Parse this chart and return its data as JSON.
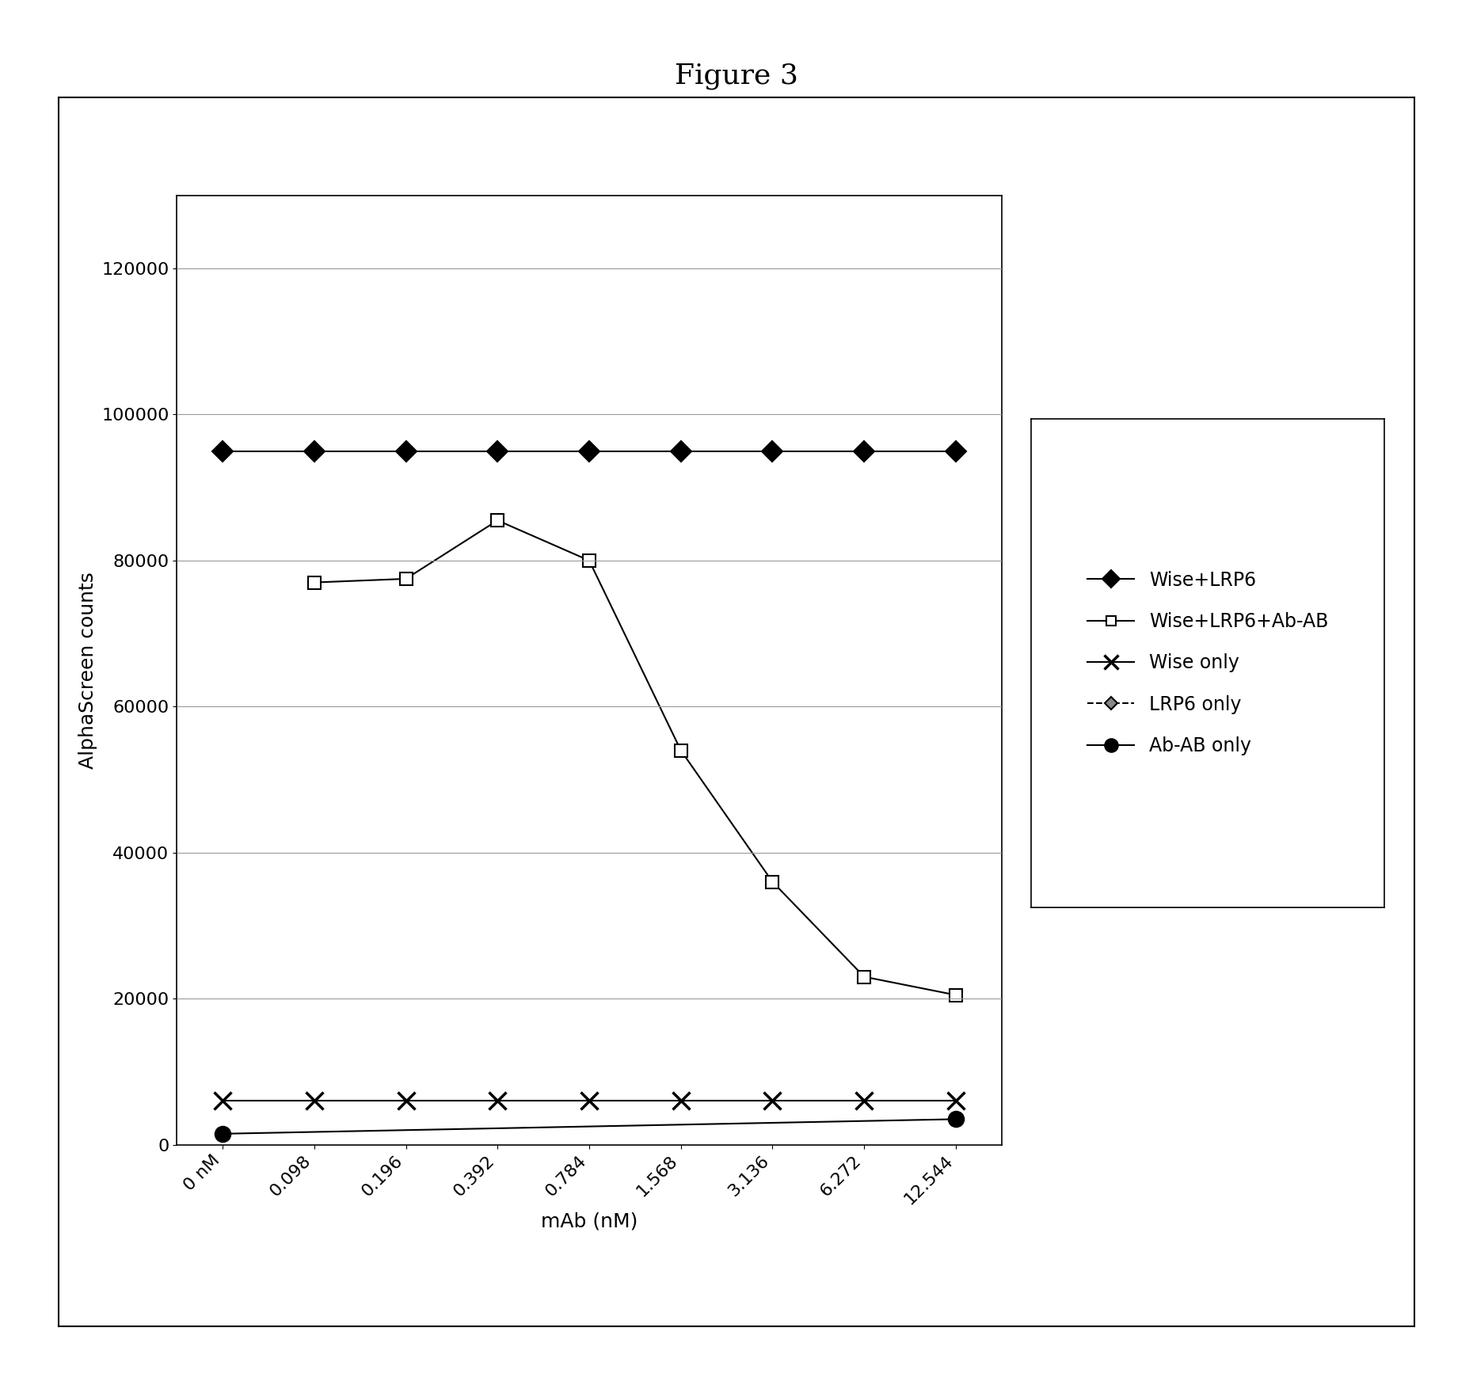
{
  "title": "Figure 3",
  "xlabel": "mAb (nM)",
  "ylabel": "AlphaScreen counts",
  "x_labels": [
    "0 nM",
    "0.098",
    "0.196",
    "0.392",
    "0.784",
    "1.568",
    "3.136",
    "6.272",
    "12.544"
  ],
  "series": [
    {
      "label": "Wise+LRP6",
      "y": [
        95000,
        95000,
        95000,
        95000,
        95000,
        95000,
        95000,
        95000,
        95000
      ],
      "color": "#000000",
      "marker": "D",
      "markersize": 13,
      "linestyle": "-",
      "linewidth": 1.5,
      "markerfacecolor": "#000000"
    },
    {
      "label": "Wise+LRP6+Ab-AB",
      "y": [
        null,
        77000,
        77500,
        85500,
        80000,
        54000,
        36000,
        23000,
        20500
      ],
      "color": "#000000",
      "marker": "s",
      "markersize": 11,
      "linestyle": "-",
      "linewidth": 1.5,
      "markerfacecolor": "#ffffff"
    },
    {
      "label": "Wise only",
      "y": [
        6000,
        6000,
        6000,
        6000,
        6000,
        6000,
        6000,
        6000,
        6000
      ],
      "color": "#000000",
      "marker": "x",
      "markersize": 16,
      "linestyle": "-",
      "linewidth": 1.5,
      "markerfacecolor": "#000000",
      "markeredgewidth": 2.5
    },
    {
      "label": "LRP6 only",
      "y": [
        null,
        null,
        null,
        null,
        null,
        null,
        null,
        null,
        null
      ],
      "color": "#000000",
      "marker": "D",
      "markersize": 10,
      "linestyle": "--",
      "linewidth": 1.5,
      "markerfacecolor": "#888888"
    },
    {
      "label": "Ab-AB only",
      "y": [
        1500,
        null,
        null,
        null,
        null,
        null,
        null,
        null,
        3500
      ],
      "color": "#000000",
      "marker": "o",
      "markersize": 14,
      "linestyle": "-",
      "linewidth": 1.5,
      "markerfacecolor": "#000000"
    }
  ],
  "ylim": [
    0,
    130000
  ],
  "yticks": [
    0,
    20000,
    40000,
    60000,
    80000,
    100000,
    120000
  ],
  "background_color": "#ffffff",
  "title_fontsize": 26,
  "axis_label_fontsize": 18,
  "tick_fontsize": 16,
  "legend_fontsize": 17
}
